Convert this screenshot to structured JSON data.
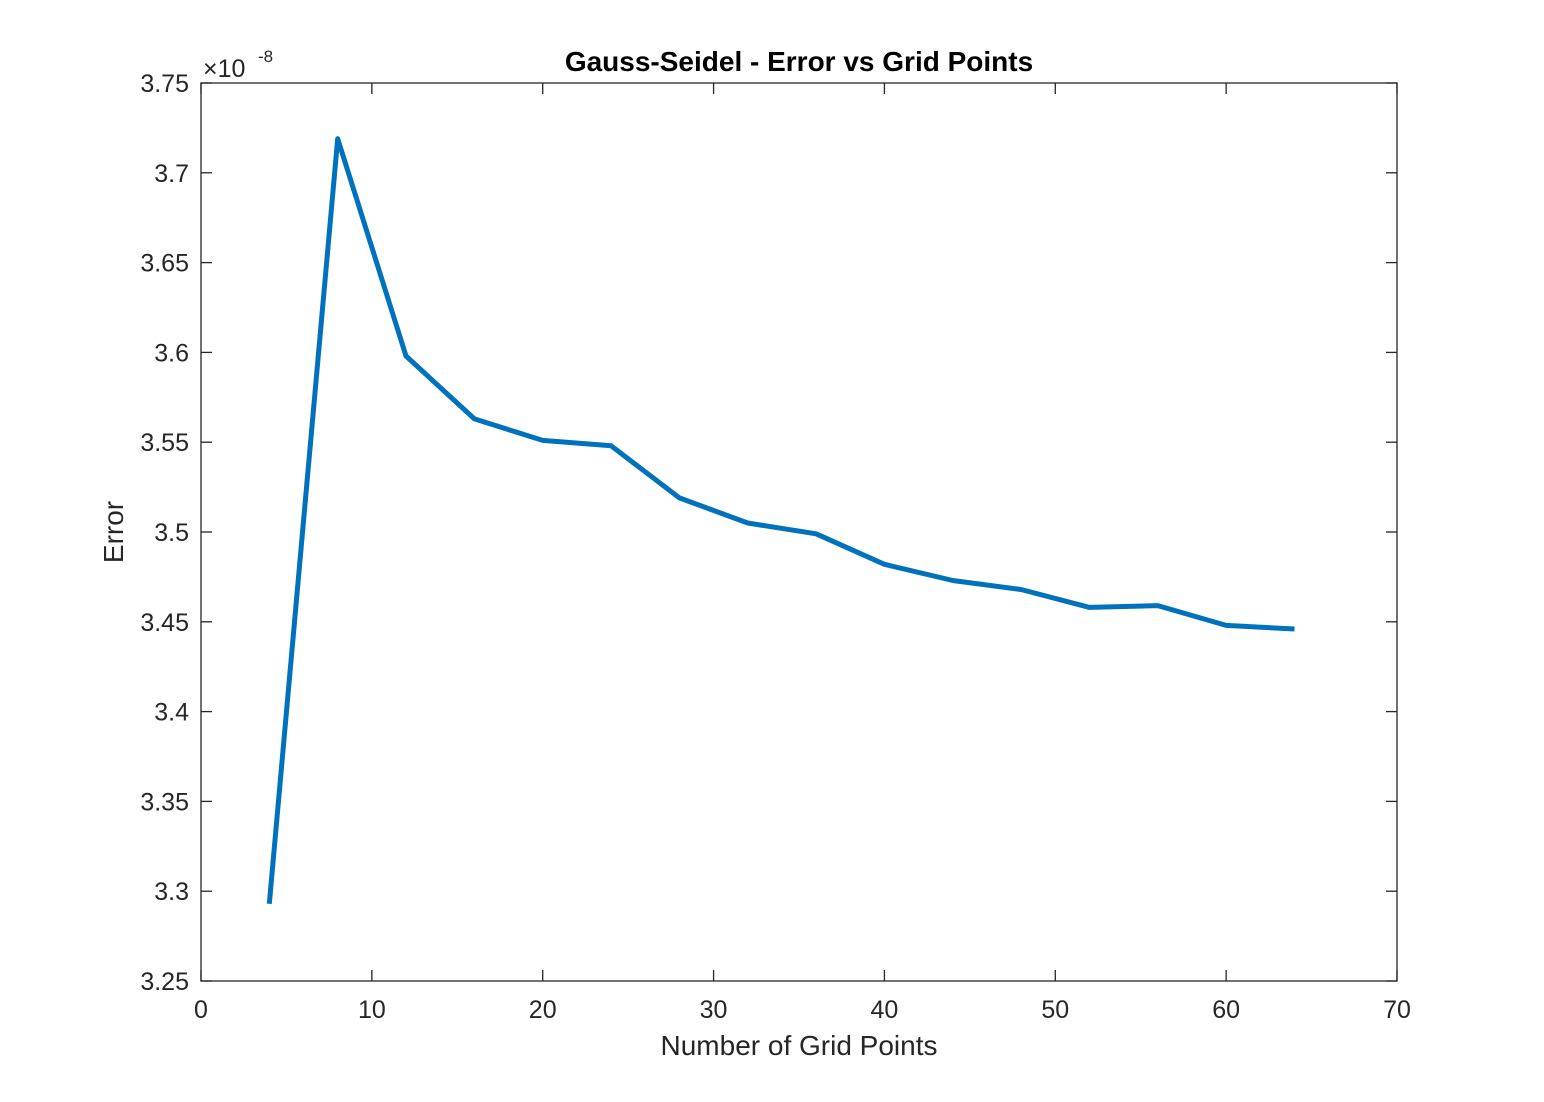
{
  "chart_data": {
    "type": "line",
    "title": "Gauss-Seidel - Error vs Grid Points",
    "xlabel": "Number of Grid Points",
    "ylabel": "Error",
    "y_exponent_prefix": "×10",
    "y_exponent": "-8",
    "xlim": [
      0,
      70
    ],
    "ylim": [
      3.25,
      3.75
    ],
    "x_ticks": [
      "0",
      "10",
      "20",
      "30",
      "40",
      "50",
      "60",
      "70"
    ],
    "y_ticks": [
      "3.25",
      "3.3",
      "3.35",
      "3.4",
      "3.45",
      "3.5",
      "3.55",
      "3.6",
      "3.65",
      "3.7",
      "3.75"
    ],
    "grid": false,
    "line_color": "#0072BD",
    "series": [
      {
        "x": [
          4,
          8,
          12,
          16,
          20,
          24,
          28,
          32,
          36,
          40,
          44,
          48,
          52,
          56,
          60,
          64
        ],
        "values": [
          3.293,
          3.719,
          3.598,
          3.563,
          3.551,
          3.548,
          3.519,
          3.505,
          3.499,
          3.482,
          3.473,
          3.468,
          3.458,
          3.459,
          3.448,
          3.446
        ]
      }
    ]
  }
}
